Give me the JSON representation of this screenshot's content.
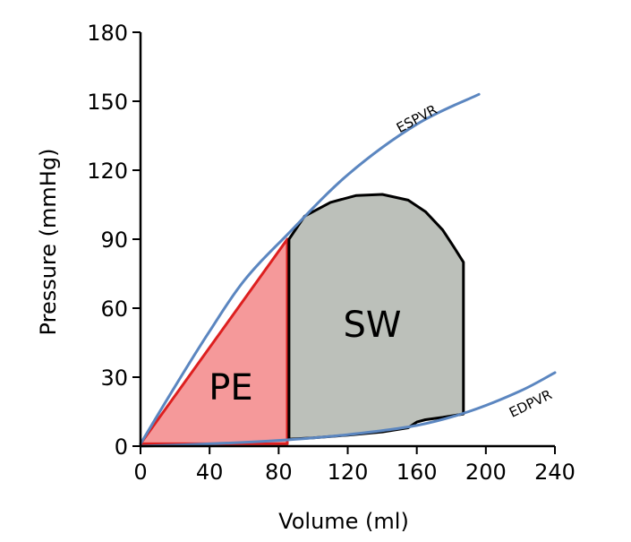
{
  "chart_data": {
    "type": "line",
    "title": "",
    "xlabel": "Volume (ml)",
    "ylabel": "Pressure (mmHg)",
    "xlim": [
      0,
      240
    ],
    "ylim": [
      0,
      180
    ],
    "xticks": [
      0,
      40,
      80,
      120,
      160,
      200,
      240
    ],
    "yticks": [
      0,
      30,
      60,
      90,
      120,
      150,
      180
    ],
    "xtick_labels": [
      "0",
      "40",
      "80",
      "120",
      "160",
      "200",
      "240"
    ],
    "ytick_labels": [
      "0",
      "30",
      "60",
      "90",
      "120",
      "150",
      "180"
    ],
    "grid": false,
    "series": [
      {
        "name": "ESPVR",
        "label": "ESPVR",
        "color": "#5b86c0",
        "x": [
          0,
          20,
          40,
          60,
          85,
          120,
          160,
          196
        ],
        "y": [
          1,
          26,
          50,
          72,
          92,
          118,
          140,
          153
        ]
      },
      {
        "name": "EDPVR",
        "label": "EDPVR",
        "color": "#5b86c0",
        "x": [
          0,
          40,
          80,
          120,
          160,
          190,
          220,
          240
        ],
        "y": [
          0,
          1,
          2.5,
          5,
          9,
          15,
          24,
          32
        ]
      }
    ],
    "regions": [
      {
        "name": "PE",
        "label": "PE",
        "fill": "#f5999a",
        "stroke": "#dd1f1f",
        "x": [
          0,
          85,
          85,
          0
        ],
        "y": [
          1,
          90,
          1,
          1
        ]
      },
      {
        "name": "SW",
        "label": "SW",
        "fill": "#bcc0ba",
        "stroke": "#000000",
        "x": [
          86,
          95,
          110,
          125,
          140,
          155,
          165,
          175,
          182,
          187,
          187,
          175,
          165,
          160,
          155,
          140,
          120,
          100,
          86,
          86
        ],
        "y": [
          90,
          100,
          106,
          109,
          109.5,
          107,
          102,
          94,
          86,
          80,
          14,
          12.5,
          11.5,
          10.5,
          8,
          6.2,
          4.8,
          3.6,
          3,
          90
        ]
      }
    ]
  }
}
